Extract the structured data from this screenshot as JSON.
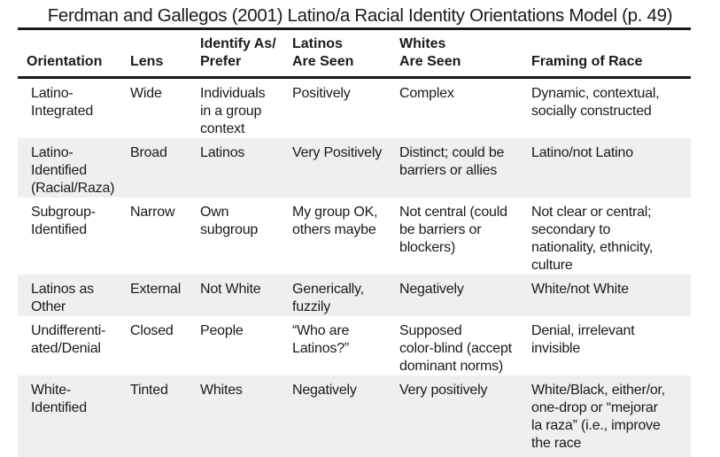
{
  "title": "Ferdman and Gallegos (2001) Latino/a Racial Identity Orientations Model (p. 49)",
  "headers": [
    "Orientation",
    "Lens",
    "Identify As/\nPrefer",
    "Latinos\nAre Seen",
    "Whites\nAre Seen",
    "Framing of Race"
  ],
  "rows": [
    [
      "Latino-\nIntegrated",
      "Wide",
      "Individuals\nin a group\ncontext",
      "Positively",
      "Complex",
      "Dynamic, contextual,\nsocially constructed"
    ],
    [
      "Latino-\nIdentified\n(Racial/Raza)",
      "Broad",
      "Latinos",
      "Very Positively",
      "Distinct; could be\nbarriers or allies",
      "Latino/not Latino"
    ],
    [
      "Subgroup-\nIdentified",
      "Narrow",
      "Own\nsubgroup",
      "My group OK,\nothers maybe",
      "Not central (could\nbe barriers or\nblockers)",
      "Not clear or central;\nsecondary to\nnationality, ethnicity,\nculture"
    ],
    [
      "Latinos as\nOther",
      "External",
      "Not White",
      "Generically,\nfuzzily",
      "Negatively",
      "White/not White"
    ],
    [
      "Undifferenti-\nated/Denial",
      "Closed",
      "People",
      "“Who are\nLatinos?”",
      "Supposed\ncolor-blind (accept\ndominant norms)",
      "Denial, irrelevant\ninvisible"
    ],
    [
      "White-\nIdentified",
      "Tinted",
      "Whites",
      "Negatively",
      "Very positively",
      "White/Black, either/or,\none-drop or “mejorar\nla raza” (i.e., improve\nthe race"
    ]
  ],
  "colors": {
    "row_shade": "#eeeff1",
    "rule": "#1a1a1a"
  }
}
